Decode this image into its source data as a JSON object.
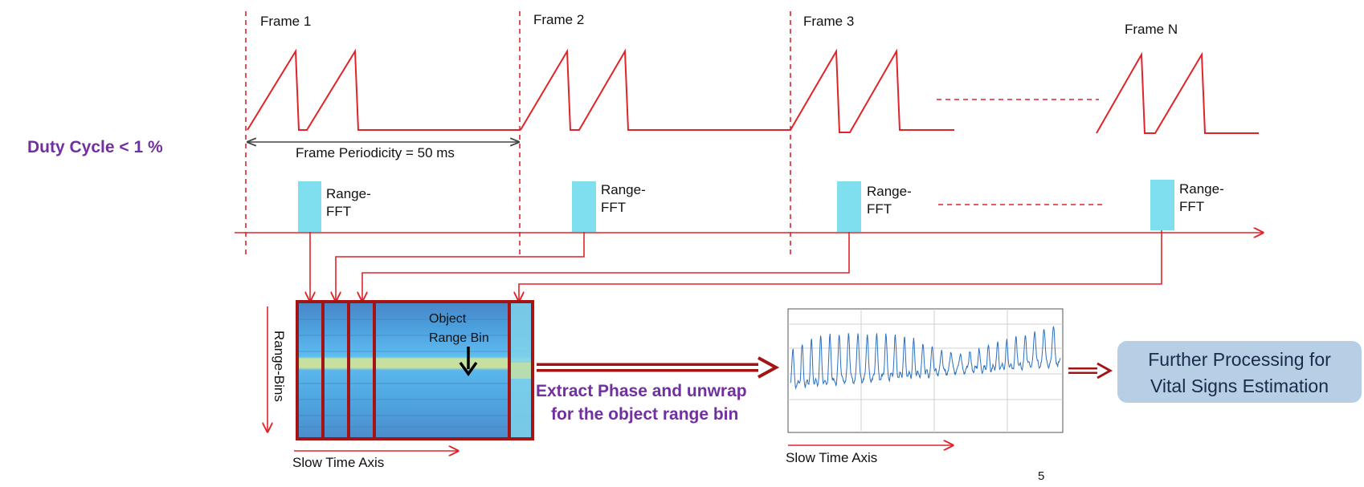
{
  "frames": {
    "frame1": "Frame 1",
    "frame2": "Frame 2",
    "frame3": "Frame 3",
    "frameN": "Frame N"
  },
  "duty_cycle": "Duty Cycle < 1 %",
  "frame_periodicity": "Frame Periodicity = 50 ms",
  "range_fft": {
    "line1": "Range-",
    "line2": "FFT"
  },
  "matrix": {
    "range_bins": "Range-Bins",
    "object_line1": "Object",
    "object_line2": "Range Bin",
    "slow_time_axis": "Slow Time Axis"
  },
  "extract": {
    "line1": "Extract Phase and unwrap",
    "line2": "for the object range bin"
  },
  "signal_plot": {
    "slow_time_axis": "Slow Time Axis"
  },
  "further_processing": {
    "line1": "Further Processing for",
    "line2": "Vital Signs Estimation"
  },
  "page_number": "5",
  "colors": {
    "signal_red": "#e0242a",
    "dark_red": "#a31515",
    "accent_purple": "#7030a0",
    "fft_box": "#7fdfee",
    "plot_line": "#2a6fc0",
    "processing_box": "#b7cfe4"
  }
}
